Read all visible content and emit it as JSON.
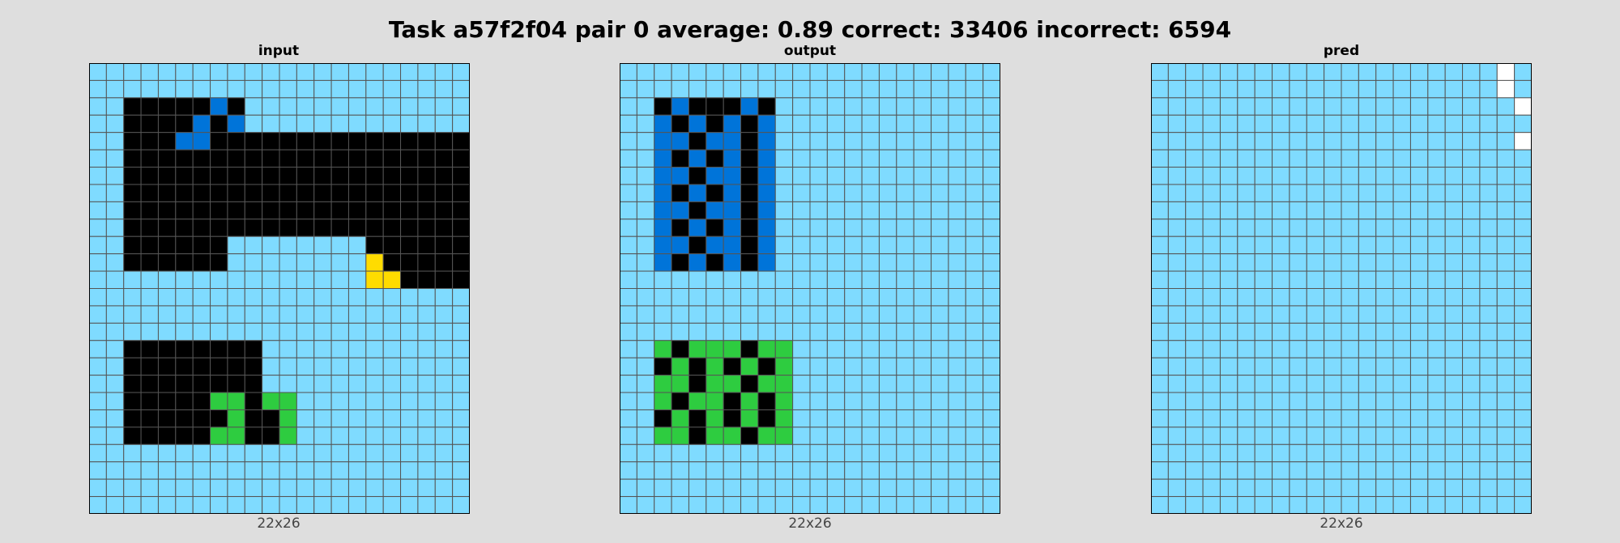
{
  "title": "Task a57f2f04 pair 0 average: 0.89 correct: 33406 incorrect: 6594",
  "palette": {
    "0": "#000000",
    "1": "#0074D9",
    "2": "#FF4136",
    "3": "#2ECC40",
    "4": "#FFDC00",
    "5": "#AAAAAA",
    "6": "#F012BE",
    "7": "#FF851B",
    "8": "#7FDBFF",
    "9": "#FFFFFF"
  },
  "chart_data": [
    {
      "type": "heatmap",
      "title": "input",
      "xlabel": "22x26",
      "rows": 26,
      "cols": 22,
      "grid": [
        "8888888888888888888888",
        "8888888888888888888888",
        "8800000108888888888888",
        "8800001018888888888888",
        "8800011000000000000000",
        "8800000000000000000000",
        "8800000000000000000000",
        "8800000000000000000000",
        "8800000000000000000000",
        "8800000000000000000000",
        "8800000088888888000000",
        "8800000088888888400000",
        "8888888888888888440000",
        "8888888888888888888888",
        "8888888888888888888888",
        "8888888888888888888888",
        "8800000000888888888888",
        "8800000000888888888888",
        "8800000000888888888888",
        "8800000330338888888888",
        "8800000030038888888888",
        "8800000330038888888888",
        "8888888888888888888888",
        "8888888888888888888888",
        "8888888888888888888888",
        "8888888888888888888888"
      ]
    },
    {
      "type": "heatmap",
      "title": "output",
      "xlabel": "22x26",
      "rows": 26,
      "cols": 22,
      "grid": [
        "8888888888888888888888",
        "8888888888888888888888",
        "8801000108888888888888",
        "8810101018888888888888",
        "8811011018888888888888",
        "8810101018888888888888",
        "8811011018888888888888",
        "8810101018888888888888",
        "8811011018888888888888",
        "8810101018888888888888",
        "8811011018888888888888",
        "8810101018888888888888",
        "8888888888888888888888",
        "8888888888888888888888",
        "8888888888888888888888",
        "8888888888888888888888",
        "8830333033888888888888",
        "8803030303888888888888",
        "8833033033888888888888",
        "8830330303888888888888",
        "8803030303888888888888",
        "8833033033888888888888",
        "8888888888888888888888",
        "8888888888888888888888",
        "8888888888888888888888",
        "8888888888888888888888"
      ]
    },
    {
      "type": "heatmap",
      "title": "pred",
      "xlabel": "22x26",
      "rows": 26,
      "cols": 22,
      "grid": [
        "8888888888888888888898",
        "8888888888888888888898",
        "8888888888888888888889",
        "8888888888888888888888",
        "8888888888888888888889",
        "8888888888888888888888",
        "8888888888888888888888",
        "8888888888888888888888",
        "8888888888888888888888",
        "8888888888888888888888",
        "8888888888888888888888",
        "8888888888888888888888",
        "8888888888888888888888",
        "8888888888888888888888",
        "8888888888888888888888",
        "8888888888888888888888",
        "8888888888888888888888",
        "8888888888888888888888",
        "8888888888888888888888",
        "8888888888888888888888",
        "8888888888888888888888",
        "8888888888888888888888",
        "8888888888888888888888",
        "8888888888888888888888",
        "8888888888888888888888",
        "8888888888888888888888"
      ]
    }
  ]
}
